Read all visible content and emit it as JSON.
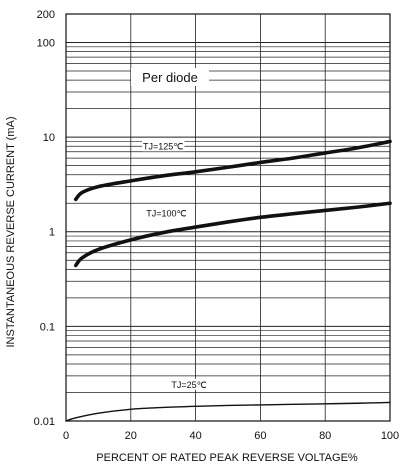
{
  "chart_data": {
    "type": "line",
    "title": "",
    "xlabel": "PERCENT OF RATED PEAK REVERSE VOLTAGE%",
    "ylabel": "INSTANTANEOUS REVERSE CURRENT (mA)",
    "xlim": [
      0,
      100
    ],
    "ylim": [
      0.01,
      200
    ],
    "y_scale": "log",
    "grid": true,
    "x_ticks": [
      0,
      20,
      40,
      60,
      80,
      100
    ],
    "x_tick_labels": [
      "0",
      "20",
      "40",
      "60",
      "80",
      "100"
    ],
    "y_ticks": [
      0.01,
      0.1,
      1,
      10,
      100,
      200
    ],
    "y_tick_labels": [
      "0.01",
      "0.1",
      "1",
      "10",
      "100",
      "200"
    ],
    "annotation": "Per diode",
    "series": [
      {
        "name": "TJ=125℃",
        "x": [
          3,
          5,
          10,
          20,
          30,
          40,
          50,
          60,
          70,
          80,
          90,
          100
        ],
        "y": [
          2.2,
          2.6,
          3.0,
          3.45,
          3.9,
          4.3,
          4.8,
          5.4,
          6.0,
          6.8,
          7.7,
          9.0
        ]
      },
      {
        "name": "TJ=100℃",
        "x": [
          3,
          5,
          10,
          20,
          30,
          40,
          50,
          60,
          70,
          80,
          90,
          100
        ],
        "y": [
          0.44,
          0.53,
          0.65,
          0.82,
          0.98,
          1.12,
          1.27,
          1.42,
          1.55,
          1.68,
          1.82,
          2.0
        ]
      },
      {
        "name": "TJ=25℃",
        "x": [
          0,
          3,
          10,
          20,
          30,
          40,
          50,
          60,
          70,
          80,
          90,
          100
        ],
        "y": [
          0.01,
          0.0108,
          0.0121,
          0.0133,
          0.0139,
          0.0143,
          0.0146,
          0.0148,
          0.015,
          0.0152,
          0.0154,
          0.0157
        ]
      }
    ]
  }
}
